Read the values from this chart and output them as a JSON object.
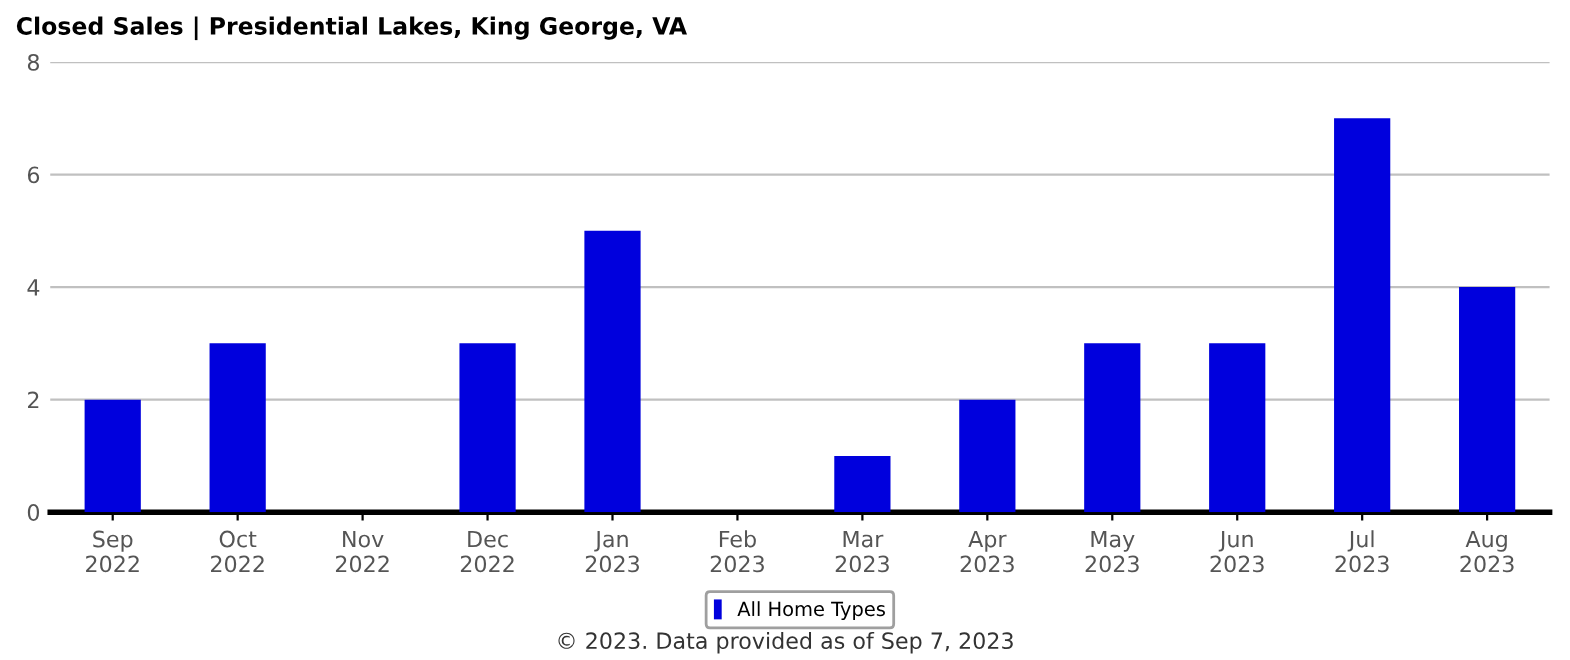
{
  "chart_data": {
    "type": "bar",
    "title": "Closed Sales | Presidential Lakes, King George, VA",
    "categories": [
      "Sep\n2022",
      "Oct\n2022",
      "Nov\n2022",
      "Dec\n2022",
      "Jan\n2023",
      "Feb\n2023",
      "Mar\n2023",
      "Apr\n2023",
      "May\n2023",
      "Jun\n2023",
      "Jul\n2023",
      "Aug\n2023"
    ],
    "series": [
      {
        "name": "All Home Types",
        "color": "#0000dd",
        "values": [
          2,
          3,
          0,
          3,
          5,
          0,
          1,
          2,
          3,
          3,
          7,
          4
        ]
      }
    ],
    "ylim": [
      0,
      8
    ],
    "yticks": [
      0,
      2,
      4,
      6,
      8
    ],
    "grid": "y",
    "legend": "bottom",
    "annotations": [
      "© 2023. Data provided as of Sep 7, 2023"
    ]
  }
}
